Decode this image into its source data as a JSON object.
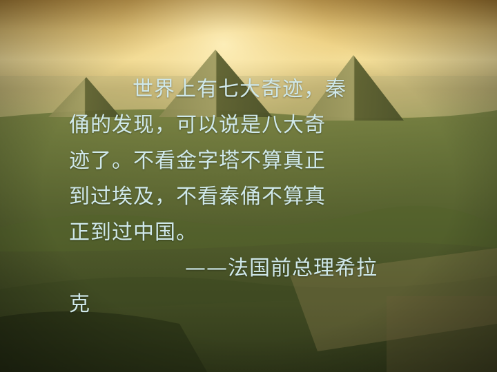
{
  "slide": {
    "quote_lines": [
      "世界上有七大奇迹，秦",
      "俑的发现，可以说是八大奇",
      "迹了。不看金字塔不算真正",
      "到过埃及，不看秦俑不算真",
      "正到过中国。"
    ],
    "attribution_line_1": "——法国前总理希拉",
    "attribution_line_2": "克"
  },
  "colors": {
    "text": "#cfe8ea",
    "sky_top": "#c9a44a",
    "sky_glow": "#f1d98a",
    "land_dark": "#2f3a1a",
    "land_mid": "#6b7a3a"
  },
  "background": {
    "scene": "aerial view of pyramids at sunset over desert landscape"
  }
}
